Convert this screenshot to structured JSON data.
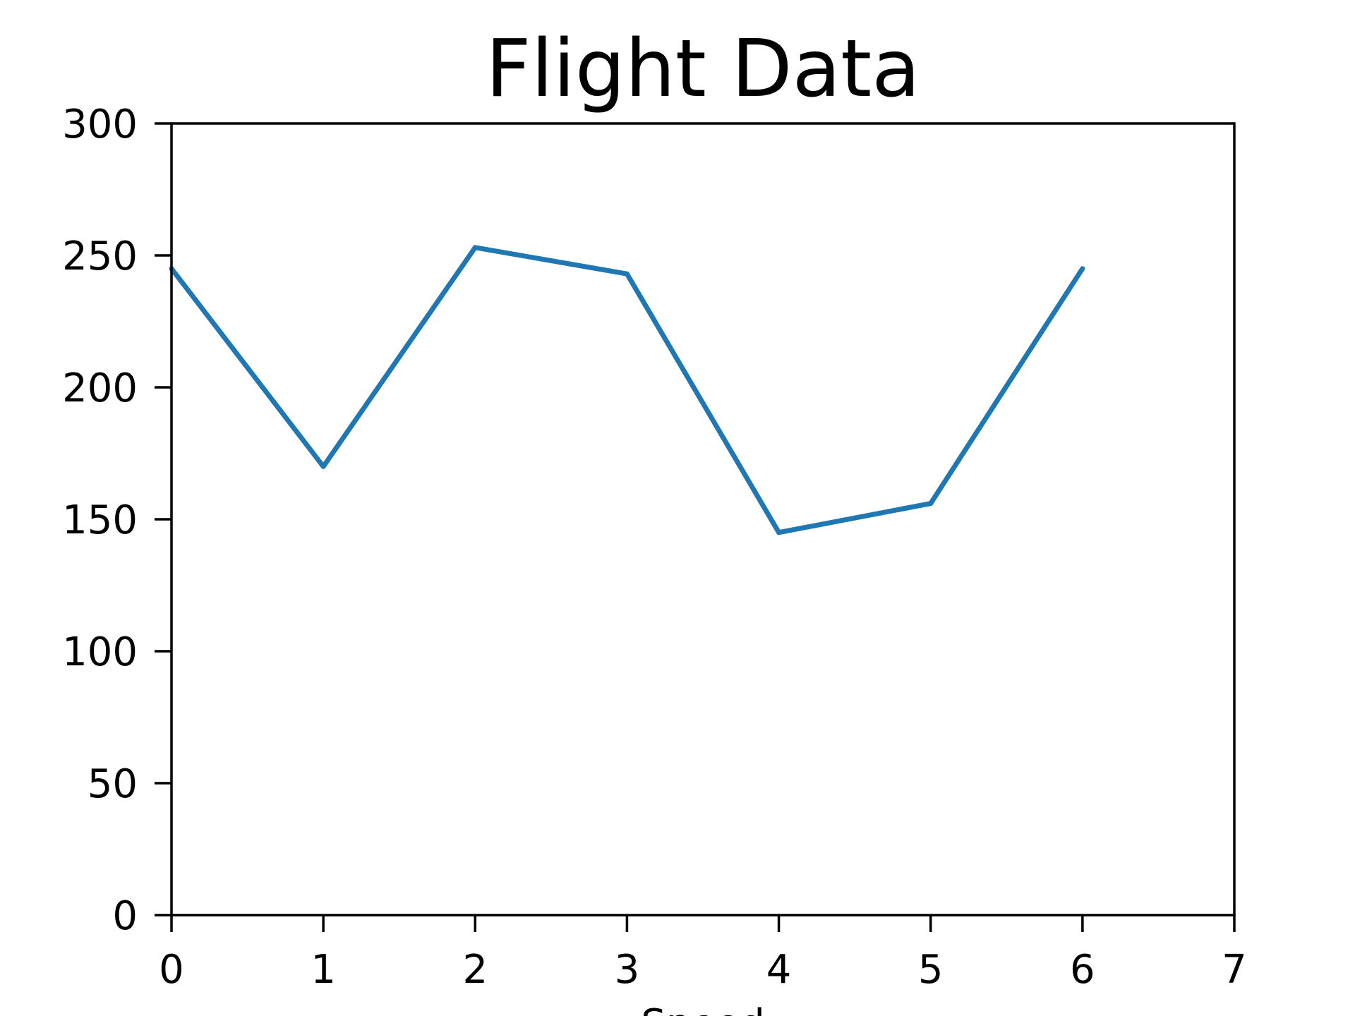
{
  "chart_data": {
    "type": "line",
    "title": "Flight Data",
    "xlabel": "Speed",
    "ylabel": "",
    "xlim": [
      0,
      7
    ],
    "ylim": [
      0,
      300
    ],
    "xticks": [
      "0",
      "1",
      "2",
      "3",
      "4",
      "5",
      "6",
      "7"
    ],
    "yticks": [
      "0",
      "50",
      "100",
      "150",
      "200",
      "250",
      "300"
    ],
    "grid": false,
    "x": [
      0,
      1,
      2,
      3,
      4,
      5,
      6
    ],
    "series": [
      {
        "values": [
          245,
          170,
          253,
          243,
          145,
          156,
          245
        ],
        "color": "#1f77b4"
      }
    ]
  }
}
